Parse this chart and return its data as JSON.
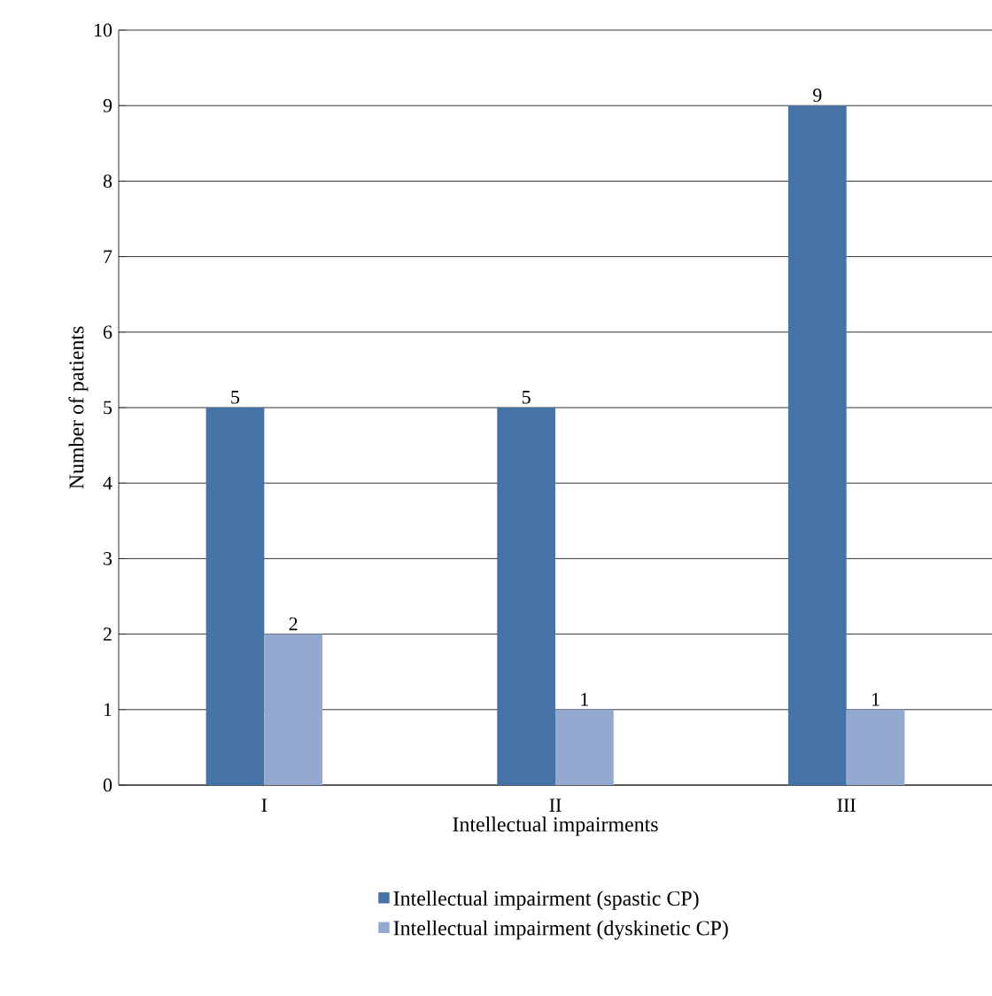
{
  "chart_data": {
    "type": "bar",
    "xlabel": "Intellectual impairments",
    "ylabel": "Number of patients",
    "categories": [
      "I",
      "II",
      "III"
    ],
    "series": [
      {
        "name": "Intellectual impairment (spastic CP)",
        "color": "#4572a7",
        "values": [
          5,
          5,
          9
        ]
      },
      {
        "name": "Intellectual impairment (dyskinetic CP)",
        "color": "#93a9cf",
        "values": [
          2,
          1,
          1
        ]
      }
    ],
    "ylim": [
      0,
      10
    ],
    "yticks": [
      0,
      1,
      2,
      3,
      4,
      5,
      6,
      7,
      8,
      9,
      10
    ],
    "grid": "y",
    "legend": "bottom",
    "data_labels": true
  }
}
